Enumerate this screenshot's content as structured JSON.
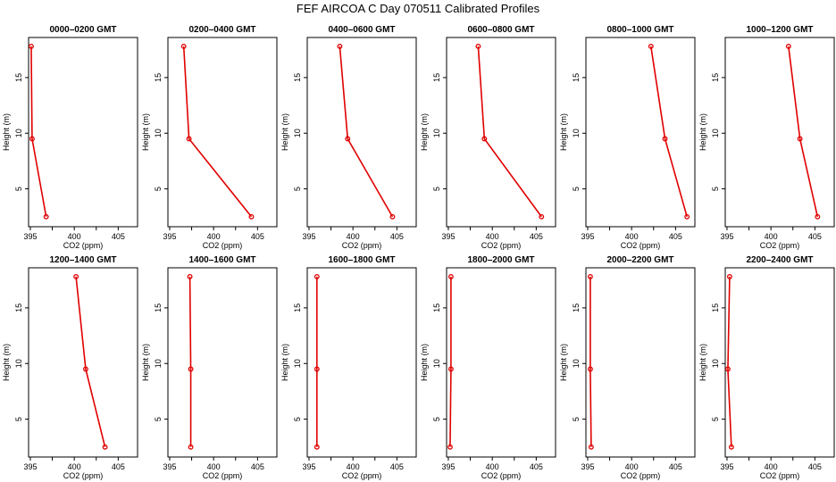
{
  "title": "FEF AIRCOA C  Day 070511  Calibrated Profiles",
  "colors": {
    "series": "#e00000",
    "axis": "#000000"
  },
  "chart_data": [
    {
      "type": "line",
      "title": "0000–0200 GMT",
      "xlabel": "CO2 (ppm)",
      "ylabel": "Height (m)",
      "xlim": [
        394.8,
        407.2
      ],
      "ylim": [
        1.6,
        18.6
      ],
      "xticks": [
        "395",
        "400",
        "405"
      ],
      "yticks": [
        "5",
        "10",
        "15"
      ],
      "points": [
        {
          "x": 395.1,
          "y": 17.8
        },
        {
          "x": 395.2,
          "y": 9.5
        },
        {
          "x": 396.8,
          "y": 2.5
        }
      ]
    },
    {
      "type": "line",
      "title": "0200–0400 GMT",
      "xlabel": "CO2 (ppm)",
      "ylabel": "Height (m)",
      "xlim": [
        394.8,
        407.2
      ],
      "ylim": [
        1.6,
        18.6
      ],
      "xticks": [
        "395",
        "400",
        "405"
      ],
      "yticks": [
        "5",
        "10",
        "15"
      ],
      "points": [
        {
          "x": 396.6,
          "y": 17.8
        },
        {
          "x": 397.2,
          "y": 9.5
        },
        {
          "x": 404.3,
          "y": 2.5
        }
      ]
    },
    {
      "type": "line",
      "title": "0400–0600 GMT",
      "xlabel": "CO2 (ppm)",
      "ylabel": "Height (m)",
      "xlim": [
        394.8,
        407.2
      ],
      "ylim": [
        1.6,
        18.6
      ],
      "xticks": [
        "395",
        "400",
        "405"
      ],
      "yticks": [
        "5",
        "10",
        "15"
      ],
      "points": [
        {
          "x": 398.5,
          "y": 17.8
        },
        {
          "x": 399.4,
          "y": 9.5
        },
        {
          "x": 404.5,
          "y": 2.5
        }
      ]
    },
    {
      "type": "line",
      "title": "0600–0800 GMT",
      "xlabel": "CO2 (ppm)",
      "ylabel": "Height (m)",
      "xlim": [
        394.8,
        407.2
      ],
      "ylim": [
        1.6,
        18.6
      ],
      "xticks": [
        "395",
        "400",
        "405"
      ],
      "yticks": [
        "5",
        "10",
        "15"
      ],
      "points": [
        {
          "x": 398.4,
          "y": 17.8
        },
        {
          "x": 399.1,
          "y": 9.5
        },
        {
          "x": 405.6,
          "y": 2.5
        }
      ]
    },
    {
      "type": "line",
      "title": "0800–1000 GMT",
      "xlabel": "CO2 (ppm)",
      "ylabel": "Height (m)",
      "xlim": [
        394.8,
        407.2
      ],
      "ylim": [
        1.6,
        18.6
      ],
      "xticks": [
        "395",
        "400",
        "405"
      ],
      "yticks": [
        "5",
        "10",
        "15"
      ],
      "points": [
        {
          "x": 402.2,
          "y": 17.8
        },
        {
          "x": 403.8,
          "y": 9.5
        },
        {
          "x": 406.3,
          "y": 2.5
        }
      ]
    },
    {
      "type": "line",
      "title": "1000–1200 GMT",
      "xlabel": "CO2 (ppm)",
      "ylabel": "Height (m)",
      "xlim": [
        394.8,
        407.2
      ],
      "ylim": [
        1.6,
        18.6
      ],
      "xticks": [
        "395",
        "400",
        "405"
      ],
      "yticks": [
        "5",
        "10",
        "15"
      ],
      "points": [
        {
          "x": 402.0,
          "y": 17.8
        },
        {
          "x": 403.3,
          "y": 9.5
        },
        {
          "x": 405.3,
          "y": 2.5
        }
      ]
    },
    {
      "type": "line",
      "title": "1200–1400 GMT",
      "xlabel": "CO2 (ppm)",
      "ylabel": "Height (m)",
      "xlim": [
        394.8,
        407.2
      ],
      "ylim": [
        1.6,
        18.6
      ],
      "xticks": [
        "395",
        "400",
        "405"
      ],
      "yticks": [
        "5",
        "10",
        "15"
      ],
      "points": [
        {
          "x": 400.2,
          "y": 17.8
        },
        {
          "x": 401.3,
          "y": 9.5
        },
        {
          "x": 403.5,
          "y": 2.5
        }
      ]
    },
    {
      "type": "line",
      "title": "1400–1600 GMT",
      "xlabel": "CO2 (ppm)",
      "ylabel": "Height (m)",
      "xlim": [
        394.8,
        407.2
      ],
      "ylim": [
        1.6,
        18.6
      ],
      "xticks": [
        "395",
        "400",
        "405"
      ],
      "yticks": [
        "5",
        "10",
        "15"
      ],
      "points": [
        {
          "x": 397.3,
          "y": 17.8
        },
        {
          "x": 397.4,
          "y": 9.5
        },
        {
          "x": 397.4,
          "y": 2.5
        }
      ]
    },
    {
      "type": "line",
      "title": "1600–1800 GMT",
      "xlabel": "CO2 (ppm)",
      "ylabel": "Height (m)",
      "xlim": [
        394.8,
        407.2
      ],
      "ylim": [
        1.6,
        18.6
      ],
      "xticks": [
        "395",
        "400",
        "405"
      ],
      "yticks": [
        "5",
        "10",
        "15"
      ],
      "points": [
        {
          "x": 395.9,
          "y": 17.8
        },
        {
          "x": 395.9,
          "y": 9.5
        },
        {
          "x": 395.9,
          "y": 2.5
        }
      ]
    },
    {
      "type": "line",
      "title": "1800–2000 GMT",
      "xlabel": "CO2 (ppm)",
      "ylabel": "Height (m)",
      "xlim": [
        394.8,
        407.2
      ],
      "ylim": [
        1.6,
        18.6
      ],
      "xticks": [
        "395",
        "400",
        "405"
      ],
      "yticks": [
        "5",
        "10",
        "15"
      ],
      "points": [
        {
          "x": 395.3,
          "y": 17.8
        },
        {
          "x": 395.3,
          "y": 9.5
        },
        {
          "x": 395.2,
          "y": 2.5
        }
      ]
    },
    {
      "type": "line",
      "title": "2000–2200 GMT",
      "xlabel": "CO2 (ppm)",
      "ylabel": "Height (m)",
      "xlim": [
        394.8,
        407.2
      ],
      "ylim": [
        1.6,
        18.6
      ],
      "xticks": [
        "395",
        "400",
        "405"
      ],
      "yticks": [
        "5",
        "10",
        "15"
      ],
      "points": [
        {
          "x": 395.3,
          "y": 17.8
        },
        {
          "x": 395.3,
          "y": 9.5
        },
        {
          "x": 395.4,
          "y": 2.5
        }
      ]
    },
    {
      "type": "line",
      "title": "2200–2400 GMT",
      "xlabel": "CO2 (ppm)",
      "ylabel": "Height (m)",
      "xlim": [
        394.8,
        407.2
      ],
      "ylim": [
        1.6,
        18.6
      ],
      "xticks": [
        "395",
        "400",
        "405"
      ],
      "yticks": [
        "5",
        "10",
        "15"
      ],
      "points": [
        {
          "x": 395.3,
          "y": 17.8
        },
        {
          "x": 395.1,
          "y": 9.5
        },
        {
          "x": 395.5,
          "y": 2.5
        }
      ]
    }
  ]
}
